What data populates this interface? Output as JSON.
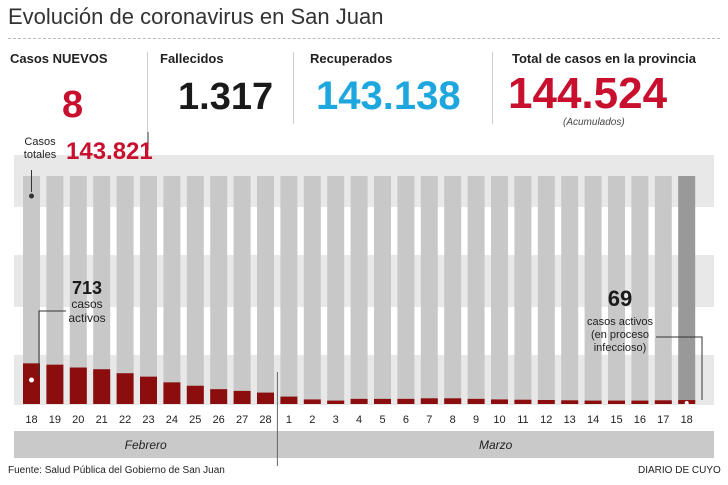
{
  "header": {
    "title": "Evolución de coronavirus en San Juan"
  },
  "kpis": {
    "new_cases_label": "Casos NUEVOS",
    "new_cases_value": "8",
    "deaths_label": "Fallecidos",
    "deaths_value": "1.317",
    "recovered_label": "Recuperados",
    "recovered_value": "143.138",
    "total_label": "Total de casos en la provincia",
    "total_value": "144.524",
    "total_note": "(Acumulados)",
    "total_cases_label_line1": "Casos",
    "total_cases_label_line2": "totales",
    "total_cases_value": "143.821"
  },
  "colors": {
    "red": "#c8102e",
    "blue": "#1ea7df",
    "dark": "#1a1a1a",
    "bar_total": "#c8c8c8",
    "bar_total_last": "#999999",
    "bar_active": "#8b0d0d",
    "band": "#e8e8e8",
    "month_strip": "#c9c9c9"
  },
  "annotations": {
    "start_value": "713",
    "start_line1": "casos",
    "start_line2": "activos",
    "end_value": "69",
    "end_line1": "casos activos",
    "end_line2": "(en proceso",
    "end_line3": "infeccioso)"
  },
  "chart_data": {
    "type": "bar",
    "months": [
      "Febrero",
      "Marzo"
    ],
    "categories": [
      "18",
      "19",
      "20",
      "21",
      "22",
      "23",
      "24",
      "25",
      "26",
      "27",
      "28",
      "1",
      "2",
      "3",
      "4",
      "5",
      "6",
      "7",
      "8",
      "9",
      "10",
      "11",
      "12",
      "13",
      "14",
      "15",
      "16",
      "17",
      "18"
    ],
    "series": [
      {
        "name": "casos activos",
        "values": [
          713,
          690,
          640,
          610,
          540,
          480,
          380,
          320,
          260,
          230,
          200,
          130,
          80,
          60,
          90,
          90,
          90,
          100,
          100,
          90,
          80,
          75,
          70,
          65,
          60,
          60,
          60,
          65,
          69
        ]
      }
    ],
    "ylim": [
      0,
      4000
    ]
  },
  "footer": {
    "source": "Fuente: Salud Pública del Gobierno de San Juan",
    "brand": "DIARIO DE CUYO"
  }
}
